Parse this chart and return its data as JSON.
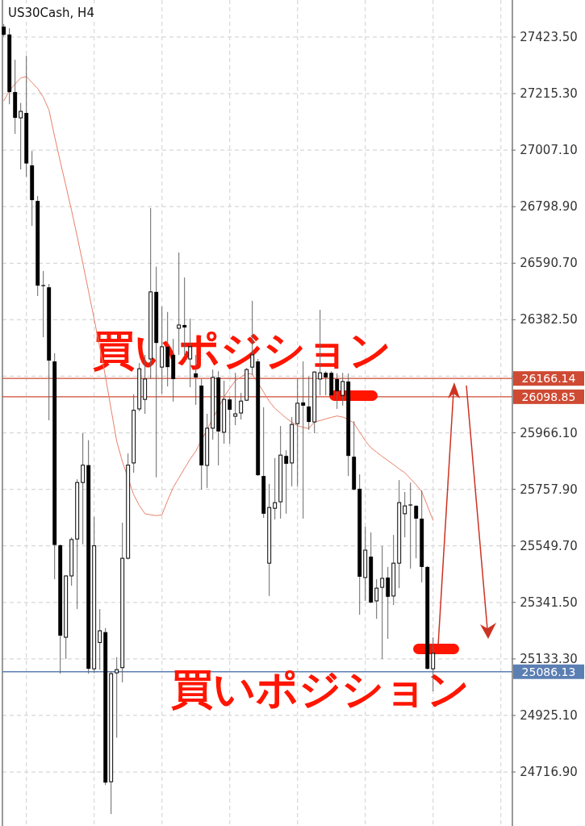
{
  "chart_data": {
    "type": "candlestick",
    "title": "US30Cash, H4",
    "categories": [
      null,
      null,
      null,
      null,
      null,
      null,
      null,
      null,
      null,
      null,
      null,
      null,
      null,
      null,
      null,
      null,
      null,
      null,
      null,
      null,
      null,
      null,
      null,
      null,
      null,
      null,
      null,
      null,
      null,
      null,
      null,
      null,
      null,
      null,
      null,
      null,
      null,
      null,
      null,
      null,
      null,
      null,
      null,
      null,
      null,
      null,
      null,
      null,
      null,
      null,
      null,
      null,
      null,
      null,
      null,
      null,
      null,
      null,
      null,
      null,
      null,
      null,
      null,
      null,
      null,
      null,
      null,
      null,
      null,
      null,
      null,
      null,
      null,
      null,
      null,
      null,
      null
    ],
    "ohlc": [
      [
        27462,
        27471,
        27426,
        27432
      ],
      [
        27433,
        27456,
        27176,
        27221
      ],
      [
        27221,
        27340,
        27067,
        27126
      ],
      [
        27126,
        27181,
        26936,
        27150
      ],
      [
        27144,
        27355,
        26909,
        26958
      ],
      [
        26951,
        27004,
        26728,
        26823
      ],
      [
        26820,
        26838,
        26470,
        26508
      ],
      [
        26510,
        26562,
        26318,
        26508
      ],
      [
        26502,
        26514,
        26012,
        26232
      ],
      [
        26229,
        26259,
        25427,
        25553
      ],
      [
        25552,
        25555,
        25079,
        25219
      ],
      [
        25213,
        25441,
        25133,
        25439
      ],
      [
        25439,
        25581,
        25403,
        25573
      ],
      [
        25575,
        25795,
        25317,
        25783
      ],
      [
        25783,
        25965,
        25555,
        25847
      ],
      [
        25847,
        25939,
        25079,
        25097
      ],
      [
        25097,
        25656,
        25081,
        25550
      ],
      [
        25194,
        25317,
        25094,
        25237
      ],
      [
        25232,
        25247,
        24669,
        24678
      ],
      [
        24681,
        25088,
        24562,
        25079
      ],
      [
        25082,
        25140,
        24843,
        25094
      ],
      [
        25101,
        25635,
        25047,
        25504
      ],
      [
        25504,
        25890,
        25500,
        25847
      ],
      [
        25855,
        26108,
        25819,
        26049
      ],
      [
        26054,
        26223,
        26045,
        26202
      ],
      [
        26089,
        26253,
        26036,
        26164
      ],
      [
        26238,
        26794,
        26164,
        26485
      ],
      [
        26485,
        26578,
        25802,
        26297
      ],
      [
        26208,
        26431,
        26110,
        26283
      ],
      [
        26283,
        26411,
        26137,
        26208
      ],
      [
        26253,
        26312,
        26081,
        26164
      ],
      [
        26351,
        26630,
        26253,
        26363
      ],
      [
        26363,
        26538,
        26253,
        26354
      ],
      [
        26238,
        26387,
        26134,
        26283
      ],
      [
        26185,
        26253,
        26069,
        26170
      ],
      [
        26140,
        26164,
        25757,
        25846
      ],
      [
        25846,
        26036,
        25763,
        25983
      ],
      [
        25983,
        26199,
        25941,
        26170
      ],
      [
        26170,
        26193,
        25846,
        25971
      ],
      [
        25968,
        26158,
        25926,
        26089
      ],
      [
        26089,
        26098,
        25926,
        26051
      ],
      [
        26027,
        26187,
        25994,
        26036
      ],
      [
        26039,
        26113,
        26015,
        26083
      ],
      [
        26086,
        26205,
        26083,
        26199
      ],
      [
        26208,
        26452,
        26179,
        26253
      ],
      [
        26229,
        26238,
        25807,
        25810
      ],
      [
        25807,
        26060,
        25653,
        25668
      ],
      [
        25486,
        25778,
        25365,
        25691
      ],
      [
        25688,
        25873,
        25647,
        25709
      ],
      [
        25712,
        25991,
        25650,
        25884
      ],
      [
        25881,
        25902,
        25668,
        25852
      ],
      [
        25855,
        26024,
        25769,
        25997
      ],
      [
        26000,
        26164,
        25769,
        26075
      ],
      [
        26078,
        26229,
        25650,
        26066
      ],
      [
        26063,
        26173,
        25977,
        26006
      ],
      [
        26006,
        26193,
        25965,
        26190
      ],
      [
        26164,
        26419,
        26104,
        26187
      ],
      [
        26187,
        26193,
        26104,
        26170
      ],
      [
        26187,
        26193,
        26098,
        26104
      ],
      [
        26164,
        26185,
        26054,
        26119
      ],
      [
        26104,
        26187,
        26066,
        26155
      ],
      [
        26155,
        26185,
        25807,
        25881
      ],
      [
        25878,
        26009,
        25754,
        25757
      ],
      [
        25760,
        25813,
        25296,
        25436
      ],
      [
        25433,
        25620,
        25347,
        25534
      ],
      [
        25510,
        25599,
        25338,
        25341
      ],
      [
        25347,
        25427,
        25281,
        25394
      ],
      [
        25397,
        25549,
        25133,
        25430
      ],
      [
        25433,
        25472,
        25207,
        25362
      ],
      [
        25365,
        25590,
        25332,
        25486
      ],
      [
        25486,
        25792,
        25394,
        25709
      ],
      [
        25668,
        25748,
        25581,
        25697
      ],
      [
        25702,
        25783,
        25466,
        25700
      ],
      [
        25697,
        25700,
        25504,
        25650
      ],
      [
        25650,
        25754,
        25415,
        25472
      ],
      [
        25472,
        25475,
        25094,
        25097
      ],
      [
        25097,
        25213,
        25014,
        25154
      ]
    ],
    "series": [
      {
        "type": "line",
        "color": "#e8806a",
        "values": [
          27189,
          27226,
          27251,
          27273,
          27278,
          27256,
          27234,
          27202,
          27155,
          27057,
          26965,
          26876,
          26785,
          26689,
          26590,
          26488,
          26385,
          26280,
          26173,
          26053,
          25934,
          25860,
          null,
          25738,
          25698,
          25668,
          25664,
          25661,
          25664,
          25717,
          25765,
          25800,
          25835,
          25869,
          25899,
          null,
          null,
          null,
          null,
          26098,
          26130,
          26158,
          26172,
          26185,
          26182,
          26150,
          26116,
          26082,
          26056,
          26038,
          26020,
          26005,
          25992,
          25986,
          25982,
          26006,
          26011,
          26017,
          26023,
          26028,
          26024,
          26016,
          26001,
          25969,
          25937,
          25911,
          25895,
          25879,
          25864,
          25849,
          25833,
          25819,
          25797,
          25775,
          25749,
          25697,
          25644
        ]
      }
    ],
    "ylim": [
      24518,
      27560
    ],
    "yticks": [
      {
        "value": 24716.9,
        "label": "24716.90"
      },
      {
        "value": 24925.1,
        "label": "24925.10"
      },
      {
        "value": 25133.3,
        "label": "25133.30"
      },
      {
        "value": 25341.5,
        "label": "25341.50"
      },
      {
        "value": 25549.7,
        "label": "25549.70"
      },
      {
        "value": 25757.9,
        "label": "25757.90"
      },
      {
        "value": 25966.1,
        "label": "25966.10"
      },
      {
        "value": 26174.3,
        "label": null
      },
      {
        "value": 26382.5,
        "label": "26382.50"
      },
      {
        "value": 26590.7,
        "label": "26590.70"
      },
      {
        "value": 26798.9,
        "label": "26798.90"
      },
      {
        "value": 27007.1,
        "label": "27007.10"
      },
      {
        "value": 27215.3,
        "label": "27215.30"
      },
      {
        "value": 27423.5,
        "label": "27423.50"
      }
    ],
    "ref_lines": [
      {
        "axis": "y",
        "value": 26166.14,
        "label": "26166.14",
        "color": "#cf4a33"
      },
      {
        "axis": "y",
        "value": 26098.85,
        "label": "26098.85",
        "color": "#cf4a33"
      },
      {
        "axis": "y",
        "value": 25086.13,
        "label": "25086.13",
        "color": "#5b7fb3"
      }
    ],
    "annotations": [
      "買いポジション",
      "買いポジション"
    ],
    "grid": true,
    "tick_labels": "y",
    "marker": "none"
  }
}
